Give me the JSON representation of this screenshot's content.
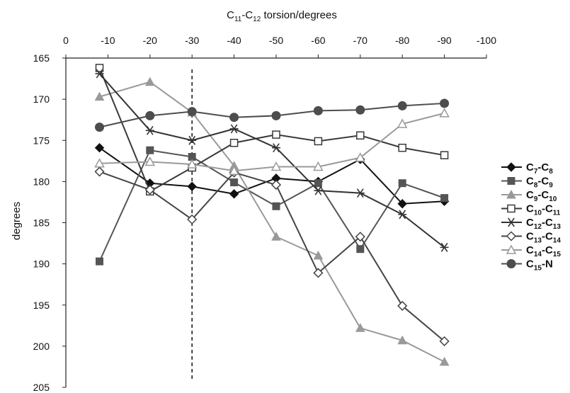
{
  "chart_data": {
    "type": "line",
    "xlabel": {
      "base": "C",
      "sub1": "11",
      "mid": "-C",
      "sub2": "12",
      "rest": " torsion/degrees"
    },
    "ylabel": "degrees",
    "x_axis_position": "top",
    "y_axis_reversed": true,
    "xlim": [
      0,
      -100
    ],
    "ylim": [
      165,
      205
    ],
    "xticks": [
      0,
      -10,
      -20,
      -30,
      -40,
      -50,
      -60,
      -70,
      -80,
      -90,
      -100
    ],
    "yticks": [
      165,
      170,
      175,
      180,
      185,
      190,
      195,
      200,
      205
    ],
    "grid": false,
    "legend_position": "right",
    "reference_line": {
      "x": -30,
      "style": "dashed"
    },
    "x": [
      -8,
      -20,
      -30,
      -40,
      -50,
      -60,
      -70,
      -80,
      -90
    ],
    "series": [
      {
        "label": {
          "a": "7",
          "b": "8",
          "tail": ""
        },
        "marker": "diamond-filled",
        "color": "#111111",
        "values": [
          175.9,
          180.2,
          180.6,
          181.5,
          179.6,
          180.0,
          177.3,
          182.7,
          182.4
        ]
      },
      {
        "label": {
          "a": "8",
          "b": "9",
          "tail": ""
        },
        "marker": "square-filled",
        "color": "#555555",
        "values": [
          189.7,
          176.2,
          177.0,
          180.1,
          183.0,
          180.2,
          188.2,
          180.2,
          182.0
        ]
      },
      {
        "label": {
          "a": "9",
          "b": "10",
          "tail": ""
        },
        "marker": "triangle-filled",
        "color": "#999999",
        "values": [
          169.7,
          167.9,
          171.6,
          178.1,
          186.7,
          189.0,
          197.8,
          199.3,
          201.9
        ]
      },
      {
        "label": {
          "a": "10",
          "b": "11",
          "tail": ""
        },
        "marker": "square-open",
        "color": "#3a3a3a",
        "values": [
          166.2,
          181.2,
          178.3,
          175.3,
          174.3,
          175.1,
          174.4,
          175.9,
          176.8
        ]
      },
      {
        "label": {
          "a": "12",
          "b": "13",
          "tail": ""
        },
        "marker": "asterisk",
        "color": "#333333",
        "values": [
          166.9,
          173.8,
          175.0,
          173.6,
          175.9,
          181.1,
          181.4,
          184.0,
          188.0
        ]
      },
      {
        "label": {
          "a": "13",
          "b": "14",
          "tail": ""
        },
        "marker": "diamond-open",
        "color": "#444444",
        "values": [
          178.8,
          181.0,
          184.6,
          178.9,
          180.4,
          191.1,
          186.7,
          195.1,
          199.4
        ]
      },
      {
        "label": {
          "a": "14",
          "b": "15",
          "tail": ""
        },
        "marker": "triangle-open",
        "color": "#9a9a9a",
        "values": [
          177.8,
          177.6,
          177.9,
          178.7,
          178.2,
          178.2,
          177.1,
          173.0,
          171.7
        ]
      },
      {
        "label": {
          "a": "15",
          "b": "",
          "tail": "-N"
        },
        "marker": "circle-filled",
        "color": "#4d4d4d",
        "values": [
          173.4,
          172.0,
          171.5,
          172.2,
          172.0,
          171.4,
          171.3,
          170.8,
          170.5
        ]
      }
    ]
  }
}
